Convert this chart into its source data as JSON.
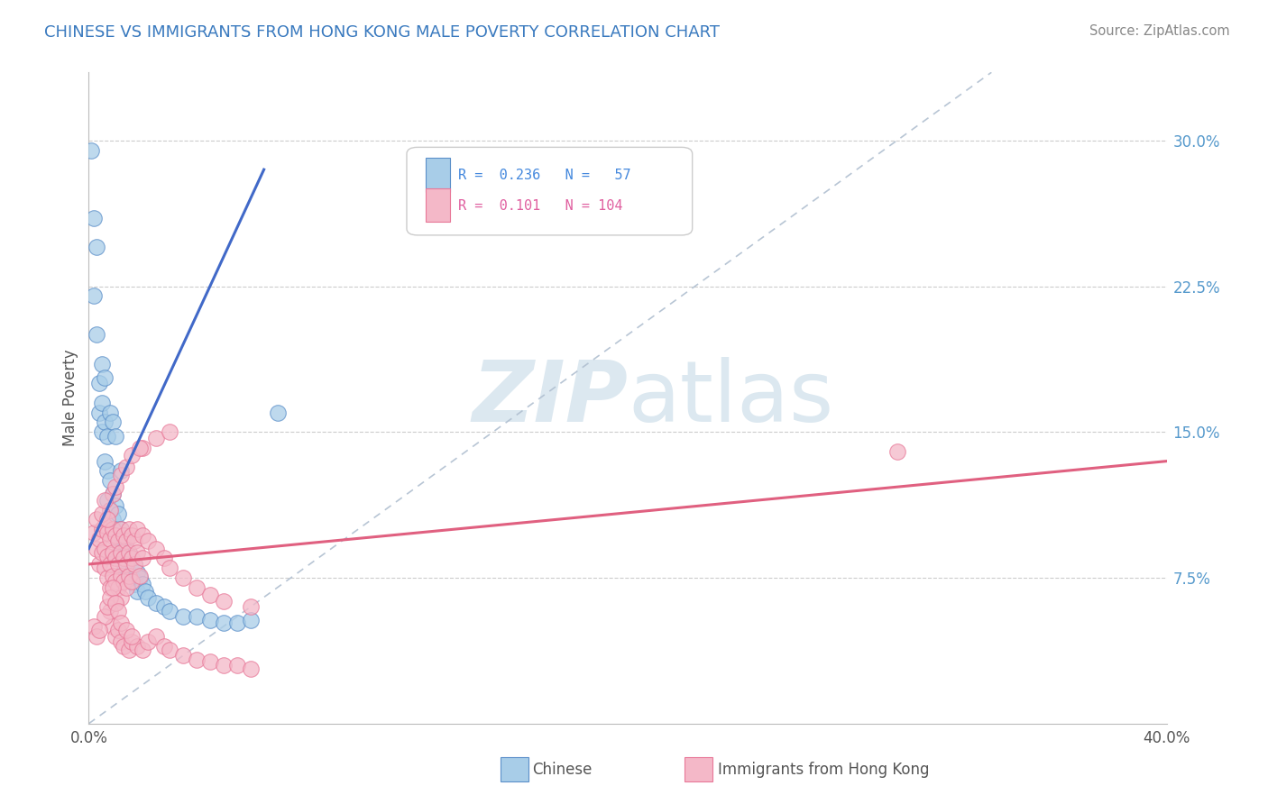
{
  "title": "CHINESE VS IMMIGRANTS FROM HONG KONG MALE POVERTY CORRELATION CHART",
  "source": "Source: ZipAtlas.com",
  "ylabel": "Male Poverty",
  "right_yticks": [
    "7.5%",
    "15.0%",
    "22.5%",
    "30.0%"
  ],
  "right_ytick_vals": [
    0.075,
    0.15,
    0.225,
    0.3
  ],
  "xlim": [
    0.0,
    0.4
  ],
  "ylim": [
    0.0,
    0.335
  ],
  "color_blue": "#a8cde8",
  "color_pink": "#f4b8c8",
  "color_blue_edge": "#5b8fc9",
  "color_pink_edge": "#e87898",
  "color_blue_line": "#4169c8",
  "color_pink_line": "#e06080",
  "color_dashed": "#b0bfd0",
  "watermark_color": "#dce8f0",
  "grid_color": "#cccccc",
  "blue_scatter": [
    [
      0.001,
      0.295
    ],
    [
      0.002,
      0.26
    ],
    [
      0.002,
      0.22
    ],
    [
      0.003,
      0.2
    ],
    [
      0.004,
      0.175
    ],
    [
      0.004,
      0.16
    ],
    [
      0.005,
      0.165
    ],
    [
      0.005,
      0.15
    ],
    [
      0.006,
      0.155
    ],
    [
      0.006,
      0.135
    ],
    [
      0.007,
      0.148
    ],
    [
      0.007,
      0.13
    ],
    [
      0.007,
      0.115
    ],
    [
      0.008,
      0.125
    ],
    [
      0.008,
      0.11
    ],
    [
      0.009,
      0.118
    ],
    [
      0.009,
      0.105
    ],
    [
      0.01,
      0.112
    ],
    [
      0.01,
      0.098
    ],
    [
      0.011,
      0.108
    ],
    [
      0.011,
      0.095
    ],
    [
      0.011,
      0.085
    ],
    [
      0.012,
      0.1
    ],
    [
      0.012,
      0.088
    ],
    [
      0.013,
      0.095
    ],
    [
      0.013,
      0.082
    ],
    [
      0.014,
      0.09
    ],
    [
      0.014,
      0.078
    ],
    [
      0.015,
      0.088
    ],
    [
      0.015,
      0.078
    ],
    [
      0.016,
      0.085
    ],
    [
      0.016,
      0.075
    ],
    [
      0.017,
      0.082
    ],
    [
      0.017,
      0.072
    ],
    [
      0.018,
      0.078
    ],
    [
      0.018,
      0.068
    ],
    [
      0.019,
      0.075
    ],
    [
      0.02,
      0.072
    ],
    [
      0.021,
      0.068
    ],
    [
      0.022,
      0.065
    ],
    [
      0.025,
      0.062
    ],
    [
      0.028,
      0.06
    ],
    [
      0.03,
      0.058
    ],
    [
      0.035,
      0.055
    ],
    [
      0.04,
      0.055
    ],
    [
      0.045,
      0.053
    ],
    [
      0.05,
      0.052
    ],
    [
      0.055,
      0.052
    ],
    [
      0.06,
      0.053
    ],
    [
      0.003,
      0.245
    ],
    [
      0.005,
      0.185
    ],
    [
      0.006,
      0.178
    ],
    [
      0.008,
      0.16
    ],
    [
      0.009,
      0.155
    ],
    [
      0.01,
      0.148
    ],
    [
      0.012,
      0.13
    ],
    [
      0.07,
      0.16
    ]
  ],
  "pink_scatter": [
    [
      0.002,
      0.098
    ],
    [
      0.003,
      0.09
    ],
    [
      0.004,
      0.095
    ],
    [
      0.004,
      0.082
    ],
    [
      0.005,
      0.1
    ],
    [
      0.005,
      0.088
    ],
    [
      0.006,
      0.102
    ],
    [
      0.006,
      0.09
    ],
    [
      0.006,
      0.08
    ],
    [
      0.007,
      0.098
    ],
    [
      0.007,
      0.086
    ],
    [
      0.007,
      0.075
    ],
    [
      0.008,
      0.095
    ],
    [
      0.008,
      0.082
    ],
    [
      0.008,
      0.07
    ],
    [
      0.009,
      0.1
    ],
    [
      0.009,
      0.088
    ],
    [
      0.009,
      0.076
    ],
    [
      0.01,
      0.097
    ],
    [
      0.01,
      0.085
    ],
    [
      0.01,
      0.073
    ],
    [
      0.01,
      0.062
    ],
    [
      0.011,
      0.094
    ],
    [
      0.011,
      0.082
    ],
    [
      0.011,
      0.07
    ],
    [
      0.012,
      0.1
    ],
    [
      0.012,
      0.088
    ],
    [
      0.012,
      0.076
    ],
    [
      0.012,
      0.065
    ],
    [
      0.013,
      0.097
    ],
    [
      0.013,
      0.085
    ],
    [
      0.013,
      0.073
    ],
    [
      0.014,
      0.094
    ],
    [
      0.014,
      0.082
    ],
    [
      0.014,
      0.07
    ],
    [
      0.015,
      0.1
    ],
    [
      0.015,
      0.088
    ],
    [
      0.015,
      0.076
    ],
    [
      0.016,
      0.097
    ],
    [
      0.016,
      0.085
    ],
    [
      0.016,
      0.073
    ],
    [
      0.017,
      0.094
    ],
    [
      0.017,
      0.082
    ],
    [
      0.018,
      0.1
    ],
    [
      0.018,
      0.088
    ],
    [
      0.019,
      0.076
    ],
    [
      0.02,
      0.097
    ],
    [
      0.02,
      0.085
    ],
    [
      0.022,
      0.094
    ],
    [
      0.025,
      0.09
    ],
    [
      0.028,
      0.085
    ],
    [
      0.03,
      0.08
    ],
    [
      0.035,
      0.075
    ],
    [
      0.04,
      0.07
    ],
    [
      0.045,
      0.066
    ],
    [
      0.05,
      0.063
    ],
    [
      0.06,
      0.06
    ],
    [
      0.008,
      0.11
    ],
    [
      0.009,
      0.118
    ],
    [
      0.01,
      0.122
    ],
    [
      0.012,
      0.128
    ],
    [
      0.014,
      0.132
    ],
    [
      0.016,
      0.138
    ],
    [
      0.02,
      0.142
    ],
    [
      0.025,
      0.147
    ],
    [
      0.03,
      0.15
    ],
    [
      0.003,
      0.105
    ],
    [
      0.005,
      0.108
    ],
    [
      0.006,
      0.115
    ],
    [
      0.007,
      0.105
    ],
    [
      0.008,
      0.058
    ],
    [
      0.009,
      0.05
    ],
    [
      0.01,
      0.045
    ],
    [
      0.011,
      0.048
    ],
    [
      0.012,
      0.042
    ],
    [
      0.013,
      0.04
    ],
    [
      0.015,
      0.038
    ],
    [
      0.016,
      0.042
    ],
    [
      0.018,
      0.04
    ],
    [
      0.02,
      0.038
    ],
    [
      0.022,
      0.042
    ],
    [
      0.025,
      0.045
    ],
    [
      0.028,
      0.04
    ],
    [
      0.03,
      0.038
    ],
    [
      0.035,
      0.035
    ],
    [
      0.04,
      0.033
    ],
    [
      0.045,
      0.032
    ],
    [
      0.05,
      0.03
    ],
    [
      0.055,
      0.03
    ],
    [
      0.06,
      0.028
    ],
    [
      0.006,
      0.055
    ],
    [
      0.007,
      0.06
    ],
    [
      0.008,
      0.065
    ],
    [
      0.009,
      0.07
    ],
    [
      0.01,
      0.062
    ],
    [
      0.011,
      0.058
    ],
    [
      0.012,
      0.052
    ],
    [
      0.014,
      0.048
    ],
    [
      0.016,
      0.045
    ],
    [
      0.019,
      0.142
    ],
    [
      0.3,
      0.14
    ],
    [
      0.002,
      0.05
    ],
    [
      0.003,
      0.045
    ],
    [
      0.004,
      0.048
    ]
  ],
  "blue_line_x": [
    0.0,
    0.065
  ],
  "blue_line_y": [
    0.09,
    0.285
  ],
  "pink_line_x": [
    0.0,
    0.4
  ],
  "pink_line_y": [
    0.082,
    0.135
  ],
  "dash_line_x": [
    0.0,
    0.335
  ],
  "dash_line_y": [
    0.0,
    0.335
  ]
}
